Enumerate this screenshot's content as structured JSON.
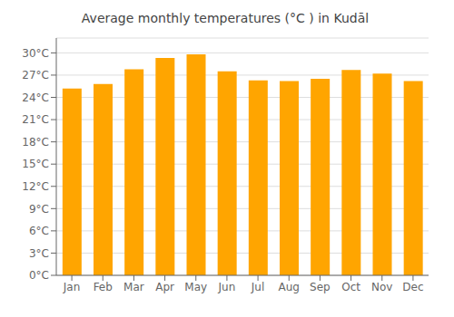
{
  "chart_data": {
    "type": "bar",
    "title": "Average monthly temperatures (°C ) in Kudāl",
    "categories": [
      "Jan",
      "Feb",
      "Mar",
      "Apr",
      "May",
      "Jun",
      "Jul",
      "Aug",
      "Sep",
      "Oct",
      "Nov",
      "Dec"
    ],
    "values": [
      25.2,
      25.8,
      27.8,
      29.3,
      29.8,
      27.5,
      26.3,
      26.2,
      26.5,
      27.7,
      27.2,
      26.2
    ],
    "color": "#FFA500",
    "ylim": [
      0,
      32
    ],
    "yticks": [
      {
        "value": 0,
        "label": "0°C"
      },
      {
        "value": 3,
        "label": "3°C"
      },
      {
        "value": 6,
        "label": "6°C"
      },
      {
        "value": 9,
        "label": "9°C"
      },
      {
        "value": 12,
        "label": "12°C"
      },
      {
        "value": 15,
        "label": "15°C"
      },
      {
        "value": 18,
        "label": "18°C"
      },
      {
        "value": 21,
        "label": "21°C"
      },
      {
        "value": 24,
        "label": "24°C"
      },
      {
        "value": 27,
        "label": "27°C"
      },
      {
        "value": 30,
        "label": "30°C"
      }
    ],
    "grid": true
  }
}
